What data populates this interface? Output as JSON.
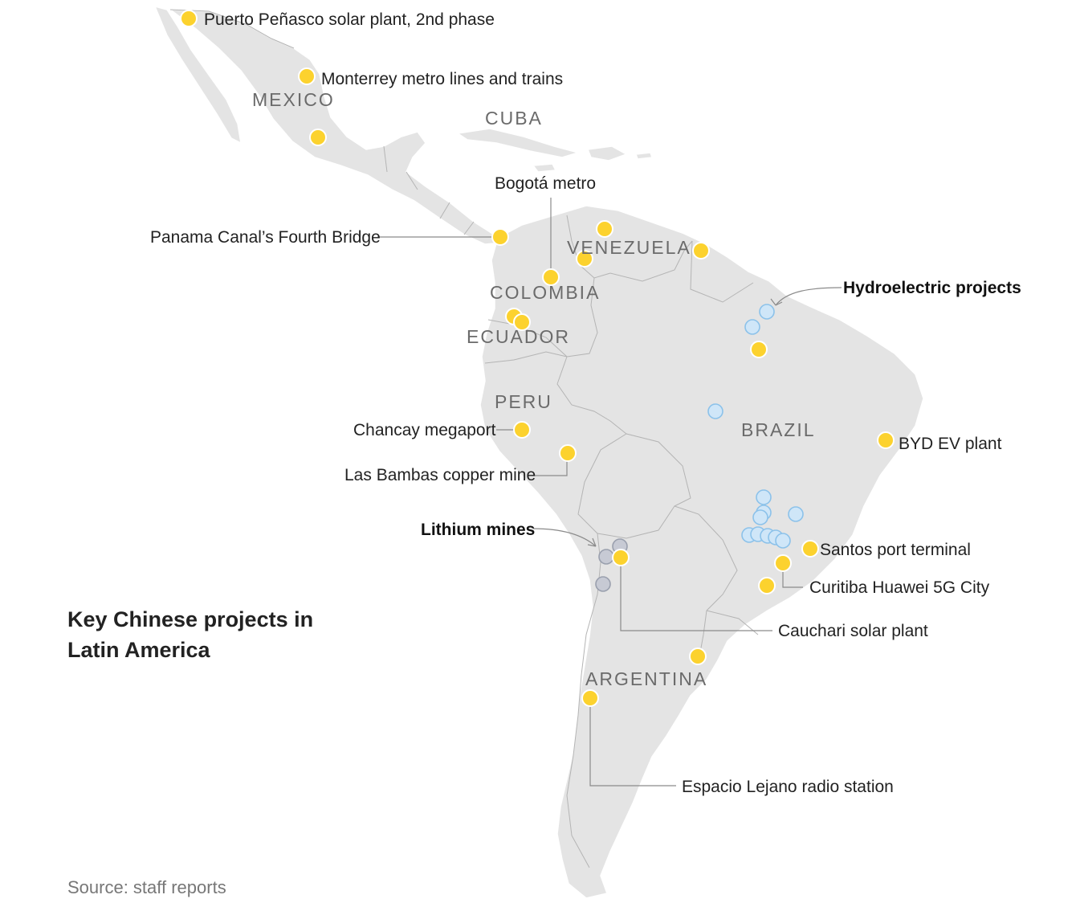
{
  "title": "Key Chinese projects in Latin America",
  "source": "Source: staff reports",
  "colors": {
    "land": "#e4e4e4",
    "project_dot": "#fcd22e",
    "hydroelectric_dot": "#cfe6f8",
    "lithium_dot": "#c7cad4"
  },
  "countries": {
    "mexico": "MEXICO",
    "cuba": "CUBA",
    "venezuela": "VENEZUELA",
    "colombia": "COLOMBIA",
    "ecuador": "ECUADOR",
    "peru": "PERU",
    "brazil": "BRAZIL",
    "argentina": "ARGENTINA"
  },
  "projects": {
    "puerto_penasco": "Puerto Peñasco solar plant, 2nd phase",
    "monterrey": "Monterrey metro lines and trains",
    "bogota": "Bogotá metro",
    "panama": "Panama Canal’s Fourth Bridge",
    "hydro": "Hydroelectric projects",
    "chancay": "Chancay megaport",
    "las_bambas": "Las Bambas copper mine",
    "byd": "BYD EV plant",
    "lithium": "Lithium mines",
    "santos": "Santos port terminal",
    "curitiba": "Curitiba Huawei 5G City",
    "cauchari": "Cauchari solar plant",
    "espacio": "Espacio Lejano radio station"
  },
  "legend_kinds": [
    "project",
    "hydroelectric",
    "lithium"
  ]
}
